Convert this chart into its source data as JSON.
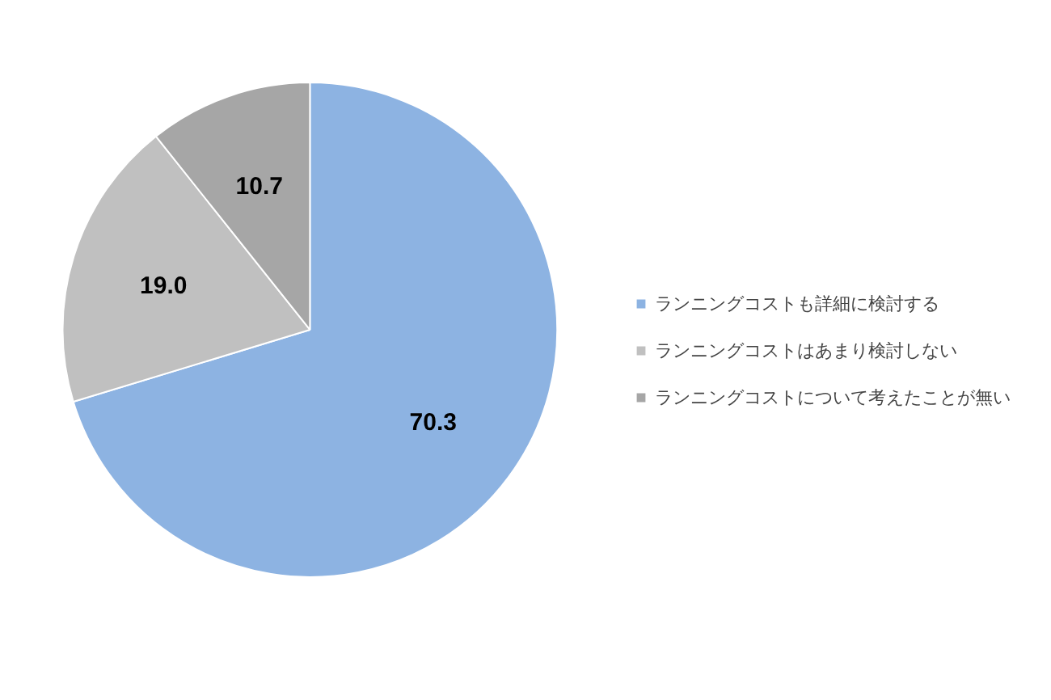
{
  "chart_data": {
    "type": "pie",
    "categories": [
      "ランニングコストも詳細に検討する",
      "ランニングコストはあまり検討しない",
      "ランニングコストについて考えたことが無い"
    ],
    "values": [
      70.3,
      19.0,
      10.7
    ],
    "colors": [
      "#8db3e2",
      "#c0c0c0",
      "#a6a6a6"
    ],
    "value_labels": [
      "70.3",
      "19.0",
      "10.7"
    ],
    "legend": "right"
  }
}
